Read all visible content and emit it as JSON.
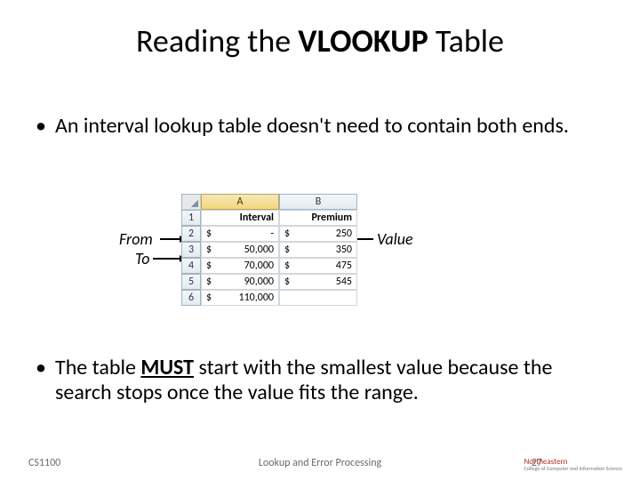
{
  "title": {
    "pre": "Reading the ",
    "mid": "VLOOKUP",
    "post": " Table",
    "fontsize": 36
  },
  "bullets": {
    "b1": "An interval lookup table doesn't need to contain both ends.",
    "b2_pre": "The table ",
    "b2_must": "MUST",
    "b2_post": " start with the smallest value because the search stops once the value fits the range."
  },
  "annotations": {
    "from": "From",
    "to": "To",
    "value": "Value"
  },
  "excel": {
    "col_letters": [
      "A",
      "B"
    ],
    "row_numbers": [
      "1",
      "2",
      "3",
      "4",
      "5",
      "6"
    ],
    "headers": [
      "Interval",
      "Premium"
    ],
    "rows": [
      {
        "interval": "-",
        "premium": "250"
      },
      {
        "interval": "50,000",
        "premium": "350"
      },
      {
        "interval": "70,000",
        "premium": "475"
      },
      {
        "interval": "90,000",
        "premium": "545"
      },
      {
        "interval": "110,000",
        "premium": ""
      }
    ],
    "currency": "$",
    "colors": {
      "sel_head_bg": "#f2d67a",
      "head_bg": "#e4ebf1",
      "grid": "#d0d7dd",
      "head_border": "#9fb4c5"
    }
  },
  "footer": {
    "left": "CS1100",
    "center": "Lookup and Error Processing",
    "page": "27",
    "logo_top": "Northeastern",
    "logo_sub": "College of Computer and Information Science"
  }
}
